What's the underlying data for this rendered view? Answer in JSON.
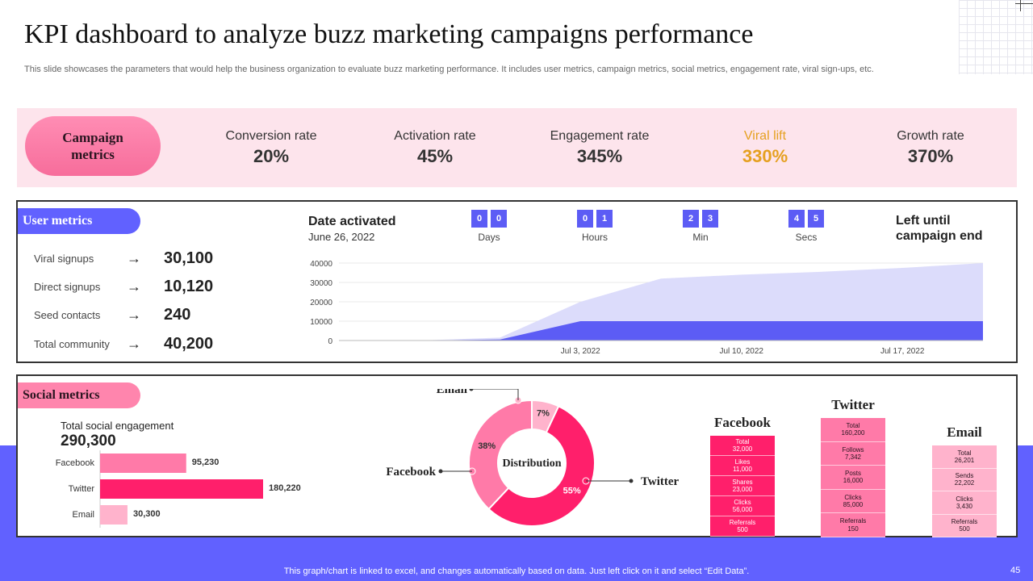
{
  "page": {
    "title": "KPI dashboard to analyze buzz marketing campaigns performance",
    "subtitle": "This slide showcases the parameters that would help the business organization to evaluate buzz  marketing performance. It includes user metrics, campaign metrics, social metrics, engagement rate, viral sign-ups, etc.",
    "footer_note": "This graph/chart is linked to excel,  and changes automatically based on data. Just left click on it and select “Edit Data”.",
    "page_number": "45"
  },
  "colors": {
    "accent_blue": "#6161ff",
    "pink_light": "#fde4ec",
    "pink_main": "#ff1f6b",
    "pink_mid": "#ff7aa8",
    "pink_soft": "#ffb3cc",
    "highlight_gold": "#e5a020"
  },
  "campaign": {
    "title": "Campaign\nmetrics",
    "kpis": [
      {
        "label": "Conversion rate",
        "value": "20%"
      },
      {
        "label": "Activation rate",
        "value": "45%"
      },
      {
        "label": "Engagement rate",
        "value": "345%"
      },
      {
        "label": "Viral lift",
        "value": "330%"
      },
      {
        "label": "Growth rate",
        "value": "370%"
      }
    ]
  },
  "user_metrics": {
    "title": "User metrics",
    "rows": [
      {
        "label": "Viral signups",
        "arrow": "→",
        "value": "30,100"
      },
      {
        "label": "Direct signups",
        "arrow": "→",
        "value": "10,120"
      },
      {
        "label": "Seed contacts",
        "arrow": "→",
        "value": "240"
      },
      {
        "label": "Total community",
        "arrow": "→",
        "value": "40,200"
      }
    ],
    "date_label": "Date activated",
    "date_value": "June 26, 2022",
    "countdown": [
      {
        "digits": [
          "0",
          "0"
        ],
        "label": "Days"
      },
      {
        "digits": [
          "0",
          "1"
        ],
        "label": "Hours"
      },
      {
        "digits": [
          "2",
          "3"
        ],
        "label": "Min"
      },
      {
        "digits": [
          "4",
          "5"
        ],
        "label": "Secs"
      }
    ],
    "left_until": "Left until campaign end"
  },
  "social": {
    "title": "Social metrics",
    "total_label": "Total social engagement",
    "total_value": "290,300",
    "facebook": {
      "title": "Facebook",
      "cells": [
        {
          "label": "Total",
          "value": "32,000"
        },
        {
          "label": "Likes",
          "value": "11,000"
        },
        {
          "label": "Shares",
          "value": "23,000"
        },
        {
          "label": "Clicks",
          "value": "56,000"
        },
        {
          "label": "Referrals",
          "value": "500"
        }
      ]
    },
    "twitter": {
      "title": "Twitter",
      "cells": [
        {
          "label": "Total",
          "value": "160,200"
        },
        {
          "label": "Follows",
          "value": "7,342"
        },
        {
          "label": "Posts",
          "value": "16,000"
        },
        {
          "label": "Clicks",
          "value": "85,000"
        },
        {
          "label": "Referrals",
          "value": "150"
        }
      ]
    },
    "email": {
      "title": "Email",
      "cells": [
        {
          "label": "Total",
          "value": "26,201"
        },
        {
          "label": "Sends",
          "value": "22,202"
        },
        {
          "label": "Clicks",
          "value": "3,430"
        },
        {
          "label": "Referrals",
          "value": "500"
        }
      ]
    }
  },
  "chart_data": [
    {
      "type": "area",
      "title": "",
      "x": [
        "Jun 26, 2022",
        "Jun 29, 2022",
        "Jul 1, 2022",
        "Jul 3, 2022",
        "Jul 6, 2022",
        "Jul 10, 2022",
        "Jul 13, 2022",
        "Jul 17, 2022",
        "Jul 20, 2022"
      ],
      "xticks": [
        "Jul 3, 2022",
        "Jul 10, 2022",
        "Jul 17, 2022"
      ],
      "yticks": [
        "0",
        "10000",
        "20000",
        "30000",
        "40000"
      ],
      "ylim": [
        0,
        40000
      ],
      "series": [
        {
          "name": "Total community",
          "values": [
            0,
            0,
            1500,
            20000,
            32000,
            34000,
            35500,
            37500,
            40000
          ]
        },
        {
          "name": "Direct signups",
          "values": [
            0,
            0,
            500,
            10000,
            10000,
            10000,
            10000,
            10000,
            10000
          ]
        }
      ]
    },
    {
      "type": "bar",
      "orientation": "horizontal",
      "categories": [
        "Facebook",
        "Twitter",
        "Email"
      ],
      "values": [
        95230,
        180220,
        30300
      ],
      "value_labels": [
        "95,230",
        "180,220",
        "30,300"
      ],
      "xlim": [
        0,
        180220
      ]
    },
    {
      "type": "pie",
      "variant": "donut",
      "center_label": "Distribution",
      "categories": [
        "Email",
        "Twitter",
        "Facebook"
      ],
      "values": [
        7,
        55,
        38
      ],
      "value_labels": [
        "7%",
        "55%",
        "38%"
      ]
    }
  ]
}
